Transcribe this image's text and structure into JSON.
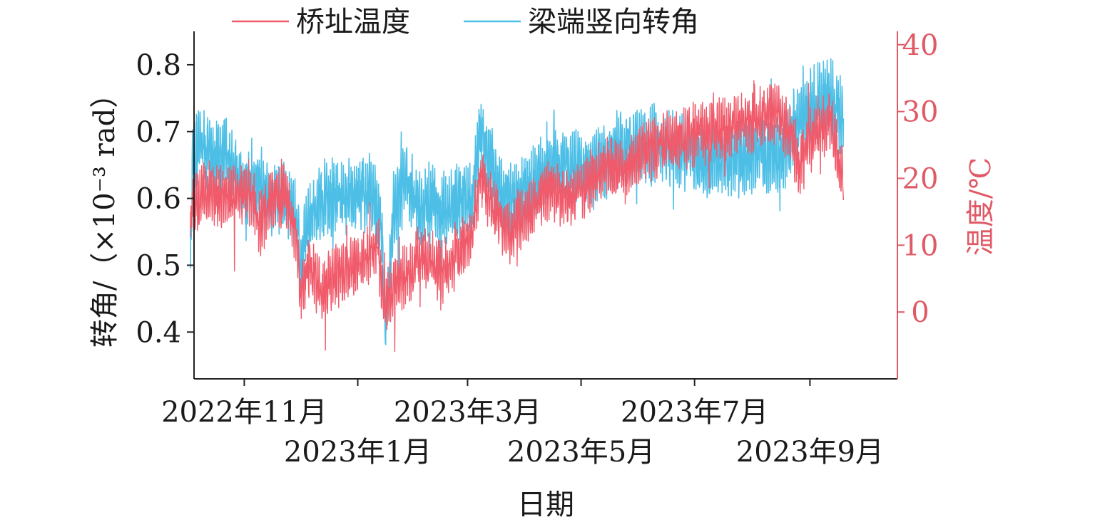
{
  "chart_data": {
    "type": "line",
    "xlabel": "日期",
    "ylabel_left": "转角/（×10⁻³ rad）",
    "ylabel_right": "温度/℃",
    "ylim_left": [
      0.33,
      0.85
    ],
    "ylim_right": [
      -10,
      42
    ],
    "xlim": [
      "2022-10-05",
      "2023-10-18"
    ],
    "y_left_ticks": [
      0.4,
      0.5,
      0.6,
      0.7,
      0.8
    ],
    "y_left_tick_labels": [
      "0.4",
      "0.5",
      "0.6",
      "0.7",
      "0.8"
    ],
    "y_right_ticks": [
      0,
      10,
      20,
      30,
      40
    ],
    "y_right_tick_labels": [
      "0",
      "10",
      "20",
      "30",
      "40"
    ],
    "x_ticks": [
      {
        "date": "2022-11-01",
        "label": "2022年11月",
        "row": 1
      },
      {
        "date": "2023-01-01",
        "label": "2023年1月",
        "row": 2
      },
      {
        "date": "2023-03-01",
        "label": "2023年3月",
        "row": 1
      },
      {
        "date": "2023-05-01",
        "label": "2023年5月",
        "row": 2
      },
      {
        "date": "2023-07-01",
        "label": "2023年7月",
        "row": 1
      },
      {
        "date": "2023-09-01",
        "label": "2023年9月",
        "row": 2
      }
    ],
    "legend_position": "top",
    "grid": false,
    "series": [
      {
        "name": "梁端竖向转角",
        "axis": "left",
        "color": "#4dbfe6",
        "points": [
          [
            "2022-10-03",
            0.48
          ],
          [
            "2022-10-04",
            0.64
          ],
          [
            "2022-10-08",
            0.69
          ],
          [
            "2022-10-14",
            0.66
          ],
          [
            "2022-10-22",
            0.67
          ],
          [
            "2022-10-31",
            0.62
          ],
          [
            "2022-11-09",
            0.62
          ],
          [
            "2022-11-16",
            0.6
          ],
          [
            "2022-11-23",
            0.6
          ],
          [
            "2022-11-30",
            0.56
          ],
          [
            "2022-12-01",
            0.48
          ],
          [
            "2022-12-04",
            0.56
          ],
          [
            "2022-12-10",
            0.59
          ],
          [
            "2022-12-17",
            0.6
          ],
          [
            "2022-12-24",
            0.6
          ],
          [
            "2023-01-01",
            0.6
          ],
          [
            "2023-01-08",
            0.61
          ],
          [
            "2023-01-14",
            0.55
          ],
          [
            "2023-01-16",
            0.4
          ],
          [
            "2023-01-20",
            0.58
          ],
          [
            "2023-01-27",
            0.63
          ],
          [
            "2023-02-03",
            0.58
          ],
          [
            "2023-02-10",
            0.6
          ],
          [
            "2023-02-17",
            0.58
          ],
          [
            "2023-02-24",
            0.6
          ],
          [
            "2023-03-03",
            0.59
          ],
          [
            "2023-03-08",
            0.7
          ],
          [
            "2023-03-14",
            0.65
          ],
          [
            "2023-03-20",
            0.6
          ],
          [
            "2023-03-27",
            0.6
          ],
          [
            "2023-04-06",
            0.62
          ],
          [
            "2023-04-16",
            0.65
          ],
          [
            "2023-04-26",
            0.65
          ],
          [
            "2023-05-06",
            0.64
          ],
          [
            "2023-05-16",
            0.66
          ],
          [
            "2023-05-26",
            0.68
          ],
          [
            "2023-06-06",
            0.68
          ],
          [
            "2023-06-16",
            0.68
          ],
          [
            "2023-06-26",
            0.67
          ],
          [
            "2023-07-06",
            0.66
          ],
          [
            "2023-07-16",
            0.66
          ],
          [
            "2023-07-26",
            0.66
          ],
          [
            "2023-08-06",
            0.67
          ],
          [
            "2023-08-16",
            0.66
          ],
          [
            "2023-08-26",
            0.72
          ],
          [
            "2023-09-04",
            0.74
          ],
          [
            "2023-09-12",
            0.75
          ],
          [
            "2023-09-19",
            0.72
          ]
        ]
      },
      {
        "name": "桥址温度",
        "axis": "right",
        "color": "#f05a6a",
        "points": [
          [
            "2022-10-03",
            12
          ],
          [
            "2022-10-04",
            16
          ],
          [
            "2022-10-10",
            18
          ],
          [
            "2022-10-18",
            17
          ],
          [
            "2022-10-26",
            17
          ],
          [
            "2022-11-04",
            18
          ],
          [
            "2022-11-09",
            13
          ],
          [
            "2022-11-16",
            17
          ],
          [
            "2022-11-23",
            18
          ],
          [
            "2022-11-30",
            10
          ],
          [
            "2022-12-01",
            2
          ],
          [
            "2022-12-06",
            7
          ],
          [
            "2022-12-12",
            3
          ],
          [
            "2022-12-18",
            5
          ],
          [
            "2022-12-24",
            6
          ],
          [
            "2023-01-01",
            7
          ],
          [
            "2023-01-08",
            9
          ],
          [
            "2023-01-12",
            10
          ],
          [
            "2023-01-15",
            0
          ],
          [
            "2023-01-20",
            4
          ],
          [
            "2023-01-27",
            5
          ],
          [
            "2023-02-03",
            8
          ],
          [
            "2023-02-10",
            7
          ],
          [
            "2023-02-17",
            6
          ],
          [
            "2023-02-24",
            9
          ],
          [
            "2023-03-03",
            12
          ],
          [
            "2023-03-08",
            20
          ],
          [
            "2023-03-16",
            15
          ],
          [
            "2023-03-24",
            12
          ],
          [
            "2023-04-04",
            15
          ],
          [
            "2023-04-14",
            19
          ],
          [
            "2023-04-24",
            17
          ],
          [
            "2023-05-04",
            19
          ],
          [
            "2023-05-14",
            22
          ],
          [
            "2023-05-24",
            21
          ],
          [
            "2023-06-03",
            24
          ],
          [
            "2023-06-13",
            25
          ],
          [
            "2023-06-23",
            26
          ],
          [
            "2023-07-03",
            27
          ],
          [
            "2023-07-13",
            27
          ],
          [
            "2023-07-23",
            28
          ],
          [
            "2023-08-03",
            29
          ],
          [
            "2023-08-13",
            30
          ],
          [
            "2023-08-20",
            28
          ],
          [
            "2023-08-26",
            22
          ],
          [
            "2023-09-04",
            27
          ],
          [
            "2023-09-12",
            29
          ],
          [
            "2023-09-17",
            22
          ],
          [
            "2023-09-19",
            19
          ]
        ]
      }
    ]
  }
}
